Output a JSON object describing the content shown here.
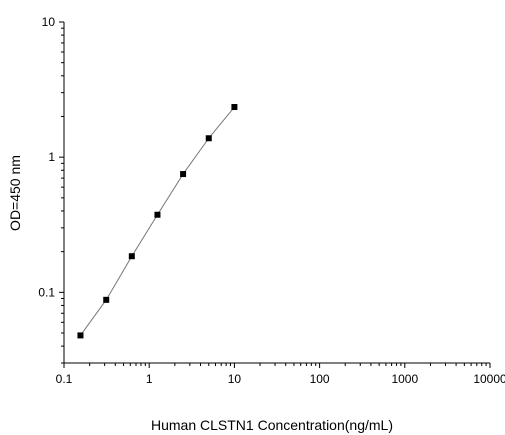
{
  "chart_data": {
    "type": "scatter",
    "title": "",
    "xlabel": "Human CLSTN1 Concentration(ng/mL)",
    "ylabel": "OD=450 nm",
    "x_scale": "log",
    "y_scale": "log",
    "xlim": [
      0.1,
      10000
    ],
    "ylim": [
      0.03,
      10
    ],
    "x_ticks": [
      0.1,
      1,
      10,
      100,
      1000,
      10000
    ],
    "x_tick_labels": [
      "0.1",
      "1",
      "10",
      "100",
      "1000",
      "10000"
    ],
    "y_ticks": [
      0.1,
      1,
      10
    ],
    "y_tick_labels": [
      "0.1",
      "1",
      "10"
    ],
    "grid": false,
    "legend": "none",
    "series": [
      {
        "x": [
          0.156,
          0.313,
          0.625,
          1.25,
          2.5,
          5,
          10
        ],
        "y": [
          0.048,
          0.088,
          0.185,
          0.375,
          0.75,
          1.38,
          2.35
        ],
        "marker": "square",
        "curve": "fitted-line"
      }
    ],
    "colors": {
      "marker": "#000000",
      "line": "#777777",
      "axis": "#000000"
    }
  }
}
